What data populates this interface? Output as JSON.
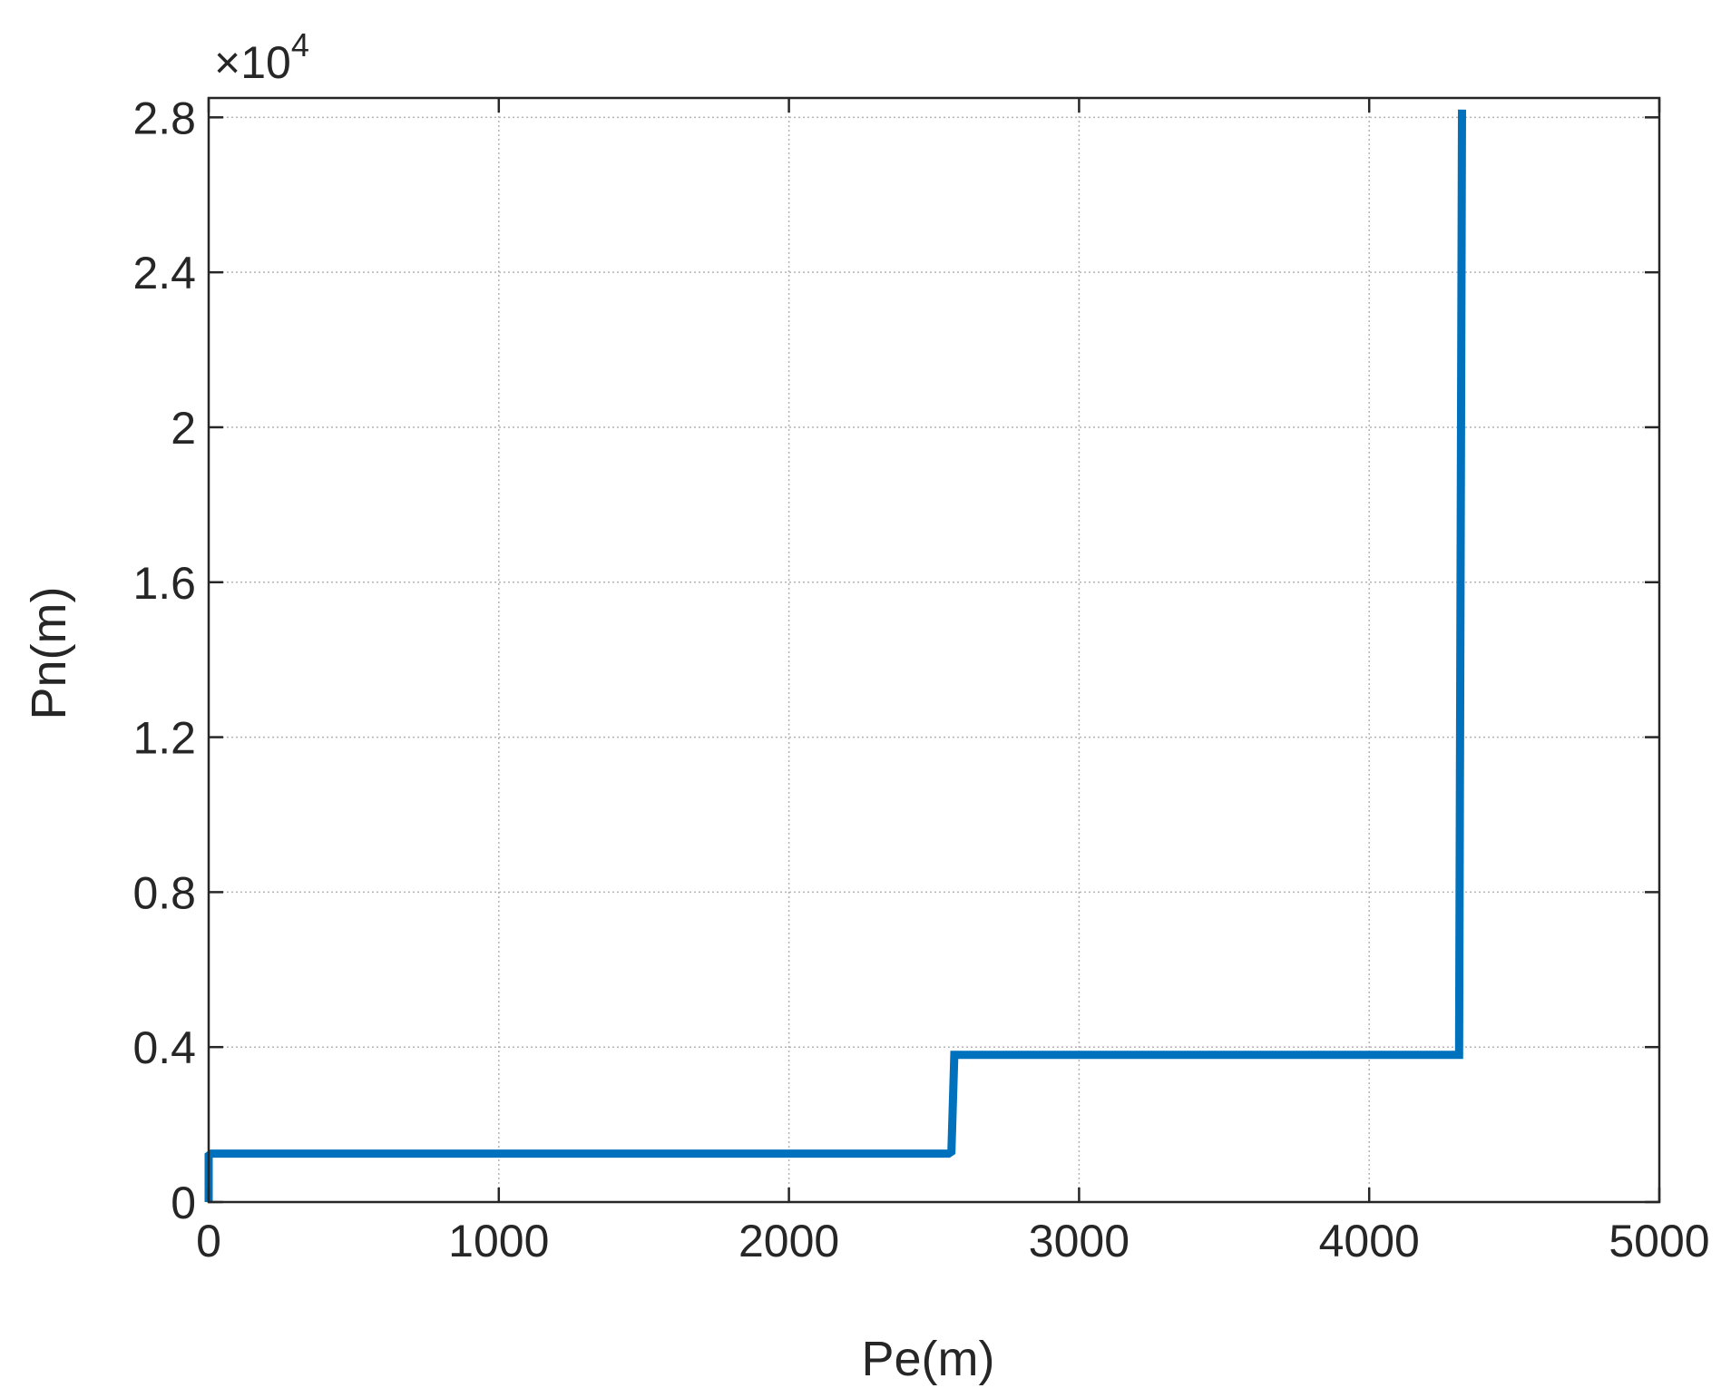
{
  "chart_data": {
    "type": "line",
    "xlabel": "Pe(m)",
    "ylabel": "Pn(m)",
    "xlim": [
      0,
      5000
    ],
    "ylim": [
      0,
      28500
    ],
    "x_ticks": [
      0,
      1000,
      2000,
      3000,
      4000,
      5000
    ],
    "x_tick_labels": [
      "0",
      "1000",
      "2000",
      "3000",
      "4000",
      "5000"
    ],
    "y_ticks": [
      0,
      4000,
      8000,
      12000,
      16000,
      20000,
      24000,
      28000
    ],
    "y_tick_labels": [
      "0",
      "0.4",
      "0.8",
      "1.2",
      "1.6",
      "2",
      "2.4",
      "2.8"
    ],
    "y_exponent": {
      "base": "×10",
      "power": "4"
    },
    "grid": true,
    "series": [
      {
        "color": "#0072BD",
        "x": [
          0,
          0,
          10,
          2550,
          2560,
          2570,
          4310,
          4320
        ],
        "y": [
          0,
          1200,
          1250,
          1250,
          1300,
          3800,
          3800,
          28200
        ]
      }
    ]
  }
}
